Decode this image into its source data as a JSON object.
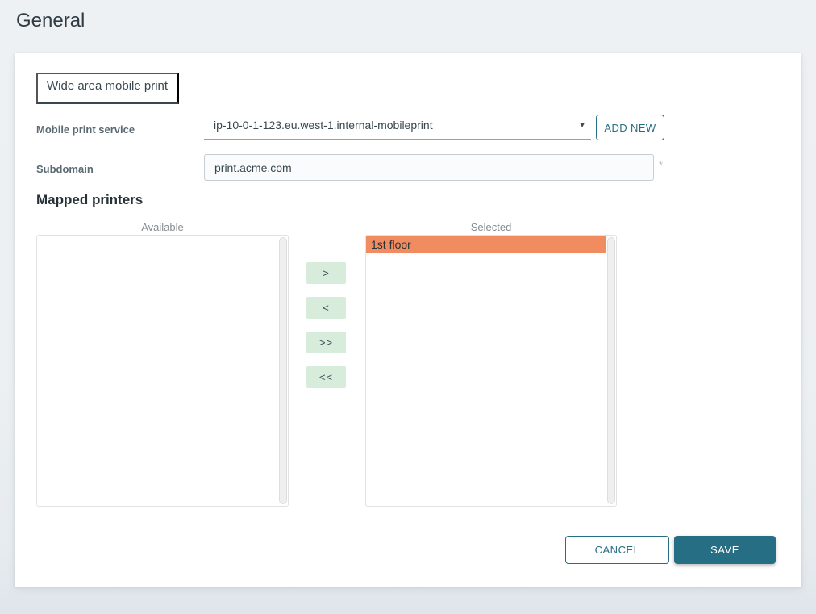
{
  "page": {
    "title": "General"
  },
  "tabs": [
    {
      "label": "Wide area mobile print",
      "active": true
    }
  ],
  "form": {
    "mobile_print_service": {
      "label": "Mobile print service",
      "value": "ip-10-0-1-123.eu.west-1.internal-mobileprint",
      "dropdown_arrow": "▼",
      "add_new_label": "ADD NEW"
    },
    "subdomain": {
      "label": "Subdomain",
      "value": "print.acme.com",
      "required_marker": "*"
    }
  },
  "mapped_printers": {
    "heading": "Mapped printers",
    "available": {
      "label": "Available",
      "items": []
    },
    "selected": {
      "label": "Selected",
      "items": [
        {
          "label": "1st floor",
          "highlighted": true
        }
      ]
    },
    "transfer_buttons": [
      {
        "name": "move-right-button",
        "glyph": ">"
      },
      {
        "name": "move-left-button",
        "glyph": "<"
      },
      {
        "name": "move-all-right-button",
        "glyph": ">>"
      },
      {
        "name": "move-all-left-button",
        "glyph": "<<"
      }
    ]
  },
  "actions": {
    "cancel_label": "CANCEL",
    "save_label": "SAVE"
  },
  "colors": {
    "accent_teal": "#256e84",
    "transfer_button_mint": "#d8ecdc",
    "selected_item_orange": "#f18b60",
    "tab_underline": "#37474f",
    "page_background": "#eef1f3"
  }
}
